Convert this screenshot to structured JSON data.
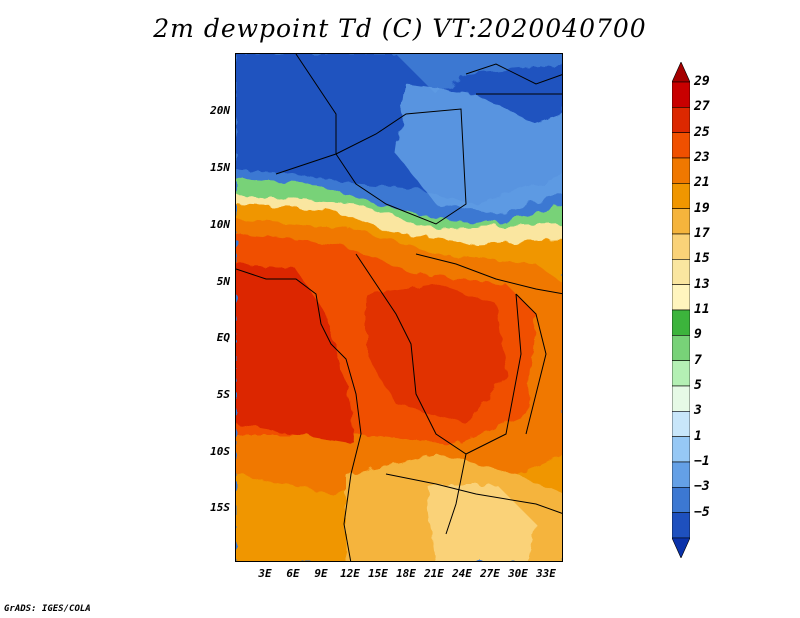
{
  "title": "2m dewpoint Td (C) VT:2020040700",
  "footer": "GrADS: IGES/COLA",
  "map": {
    "lat_labels": [
      "20N",
      "15N",
      "10N",
      "5N",
      "EQ",
      "5S",
      "10S",
      "15S"
    ],
    "lon_labels": [
      "3E",
      "6E",
      "9E",
      "12E",
      "15E",
      "18E",
      "21E",
      "24E",
      "27E",
      "30E",
      "33E"
    ]
  },
  "colorbar": {
    "levels": [
      "29",
      "27",
      "25",
      "23",
      "21",
      "19",
      "17",
      "15",
      "13",
      "11",
      "9",
      "7",
      "5",
      "3",
      "1",
      "−1",
      "−3",
      "−5"
    ],
    "colors": [
      "#a50000",
      "#c80000",
      "#dc2800",
      "#f05000",
      "#f07800",
      "#f09600",
      "#f5b43c",
      "#fad278",
      "#fae6a0",
      "#fff5be",
      "#3cb43c",
      "#78d278",
      "#b4f0b4",
      "#e6fae6",
      "#c8e6fa",
      "#96c8f5",
      "#64a0e6",
      "#3c78d2",
      "#1e50be",
      "#0a32aa"
    ]
  }
}
